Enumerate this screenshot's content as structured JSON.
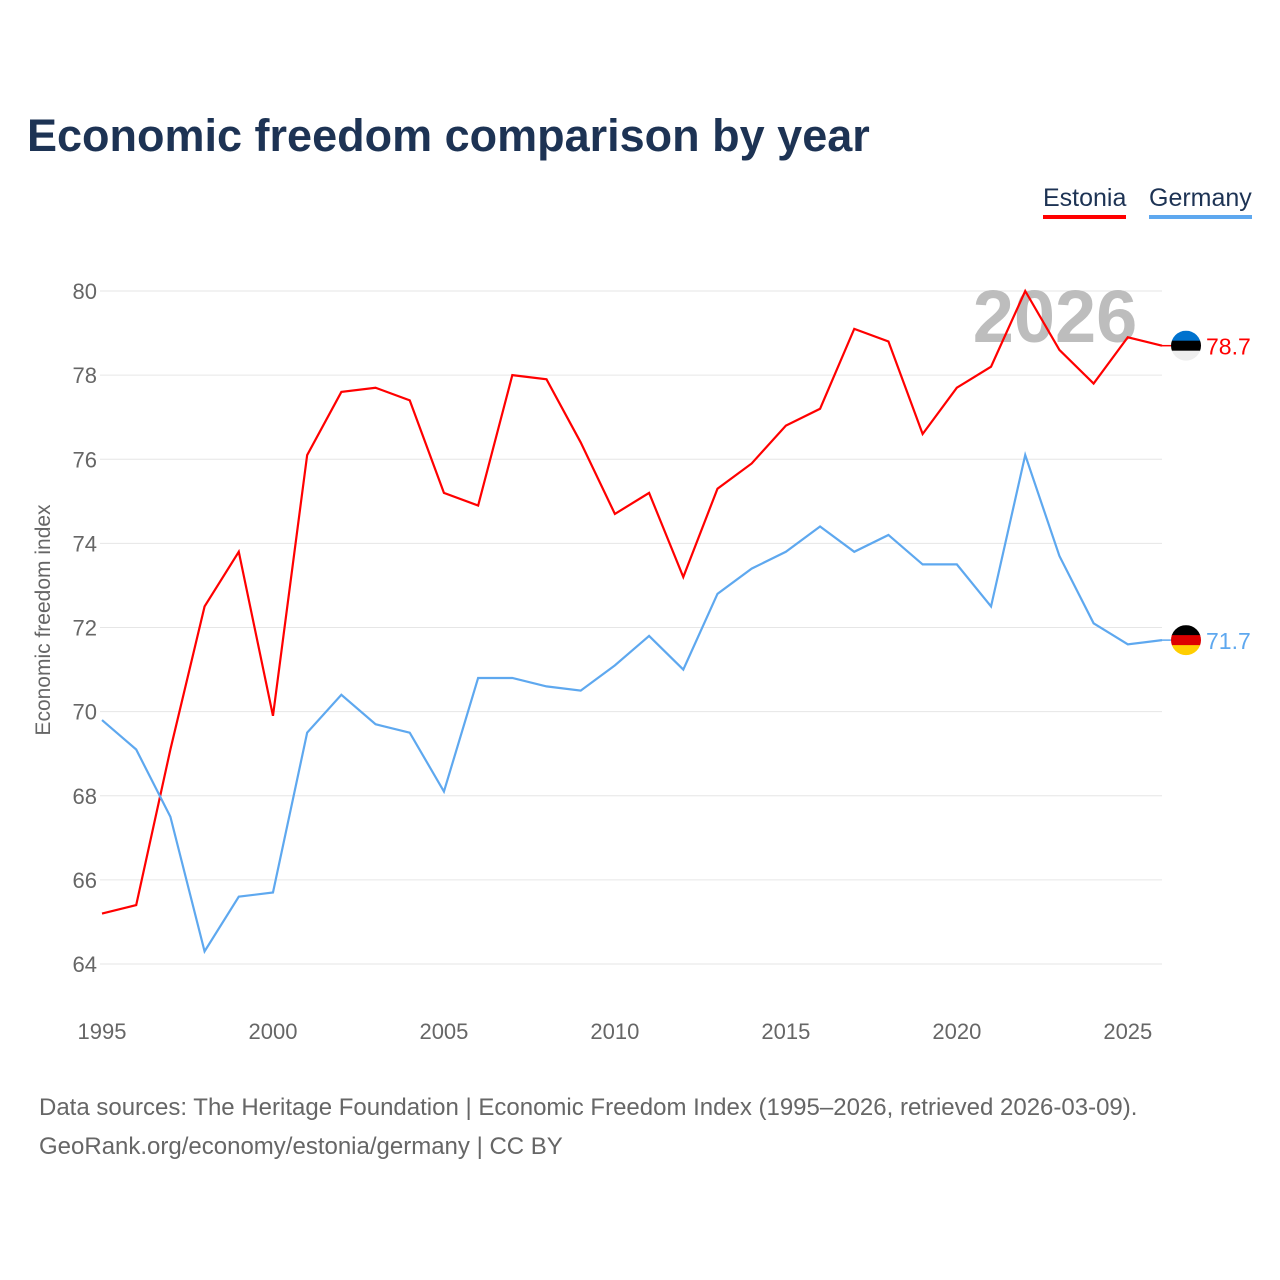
{
  "title": "Economic freedom comparison by year",
  "legend": [
    "Estonia",
    "Germany"
  ],
  "watermark_year": "2026",
  "footer": {
    "line1": "Data sources: The Heritage Foundation | Economic Freedom Index (1995–2026, retrieved 2026-03-09).",
    "line2": "GeoRank.org/economy/estonia/germany | CC BY"
  },
  "chart_data": {
    "type": "line",
    "title": "Economic freedom comparison by year",
    "xlabel": "",
    "ylabel": "Economic freedom index",
    "xlim": [
      1995,
      2026
    ],
    "ylim": [
      64,
      80
    ],
    "xticks": [
      1995,
      2000,
      2005,
      2010,
      2015,
      2020,
      2025
    ],
    "yticks": [
      64,
      66,
      68,
      70,
      72,
      74,
      76,
      78,
      80
    ],
    "grid": true,
    "legend_position": "top-right",
    "x": [
      1995,
      1996,
      1997,
      1998,
      1999,
      2000,
      2001,
      2002,
      2003,
      2004,
      2005,
      2006,
      2007,
      2008,
      2009,
      2010,
      2011,
      2012,
      2013,
      2014,
      2015,
      2016,
      2017,
      2018,
      2019,
      2020,
      2021,
      2022,
      2023,
      2024,
      2025,
      2026
    ],
    "series": [
      {
        "name": "Estonia",
        "color": "#ff0000",
        "end_label": "78.7",
        "values": [
          65.2,
          65.4,
          69.1,
          72.5,
          73.8,
          69.9,
          76.1,
          77.6,
          77.7,
          77.4,
          75.2,
          74.9,
          78.0,
          77.9,
          76.4,
          74.7,
          75.2,
          73.2,
          75.3,
          75.9,
          76.8,
          77.2,
          79.1,
          78.8,
          76.6,
          77.7,
          78.2,
          80.0,
          78.6,
          77.8,
          78.9,
          78.7
        ]
      },
      {
        "name": "Germany",
        "color": "#5ea8ef",
        "end_label": "71.7",
        "values": [
          69.8,
          69.1,
          67.5,
          64.3,
          65.6,
          65.7,
          69.5,
          70.4,
          69.7,
          69.5,
          68.1,
          70.8,
          70.8,
          70.6,
          70.5,
          71.1,
          71.8,
          71.0,
          72.8,
          73.4,
          73.8,
          74.4,
          73.8,
          74.2,
          73.5,
          73.5,
          72.5,
          76.1,
          73.7,
          72.1,
          71.6,
          71.7
        ]
      }
    ]
  }
}
